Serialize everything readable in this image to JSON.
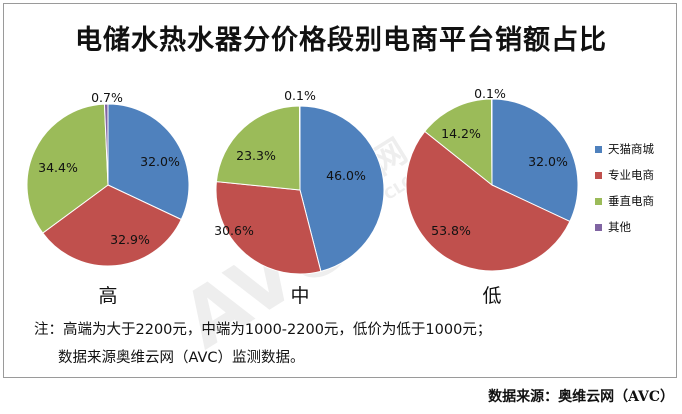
{
  "chart_data": {
    "type": "pie",
    "title": "电储水热水器分价格段别电商平台销额占比",
    "categories": [
      "天猫商城",
      "专业电商",
      "垂直电商",
      "其他"
    ],
    "colors": [
      "#4f81bd",
      "#c0504d",
      "#9bbb59",
      "#8064a2"
    ],
    "legend_position": "right",
    "series": [
      {
        "name": "高",
        "values": [
          32.0,
          32.9,
          34.4,
          0.7
        ],
        "labels": [
          "32.0%",
          "32.9%",
          "34.4%",
          "0.7%"
        ]
      },
      {
        "name": "中",
        "values": [
          46.0,
          30.6,
          23.3,
          0.1
        ],
        "labels": [
          "46.0%",
          "30.6%",
          "23.3%",
          "0.1%"
        ]
      },
      {
        "name": "低",
        "values": [
          32.0,
          53.8,
          14.2,
          0.1
        ],
        "labels": [
          "32.0%",
          "53.8%",
          "14.2%",
          "0.1%"
        ]
      }
    ]
  },
  "watermark": {
    "brand": "奥维云网",
    "sub": "ALL VIEW CLOUD",
    "logo": "AVC"
  },
  "notes": {
    "line1": "注：高端为大于2200元，中端为1000-2200元，低价为低于1000元；",
    "line2": "数据来源奥维云网（AVC）监测数据。"
  },
  "source": "数据来源：奥维云网（AVC）"
}
